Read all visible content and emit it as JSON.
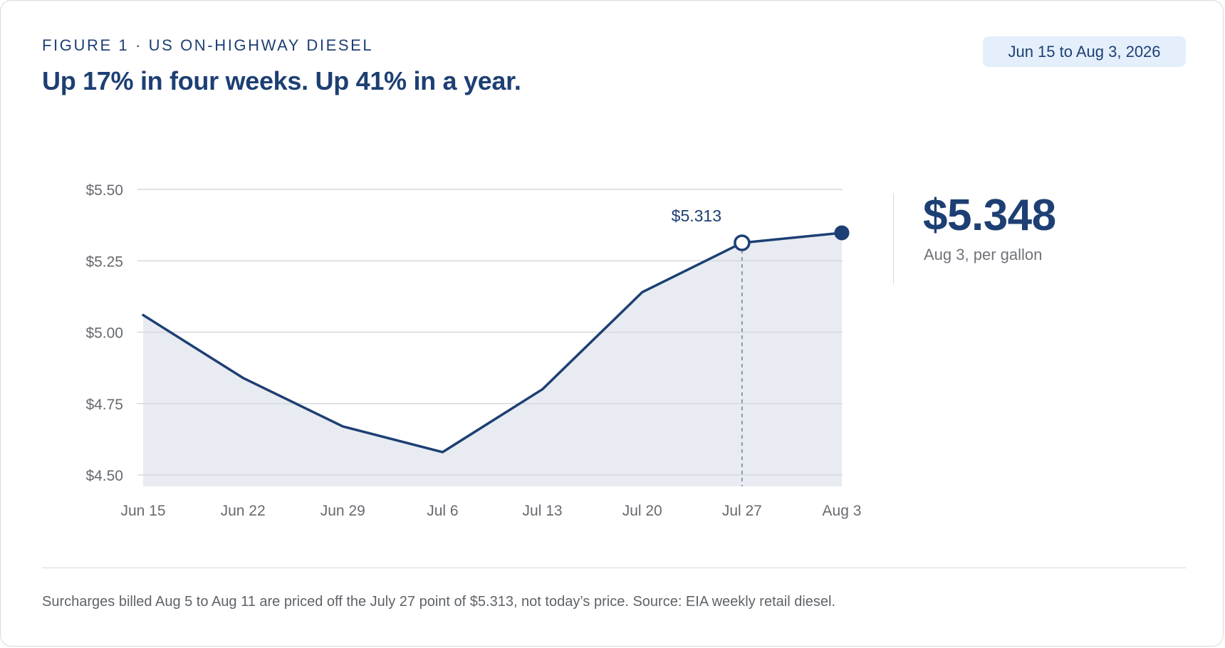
{
  "header": {
    "eyebrow": "FIGURE 1 · US ON-HIGHWAY DIESEL",
    "headline": "Up 17% in four weeks. Up 41% in a year.",
    "date_range": "Jun 15 to Aug 3, 2026"
  },
  "callout": {
    "value": "$5.348",
    "caption": "Aug 3, per gallon"
  },
  "footnote": "Surcharges billed Aug 5 to Aug 11 are priced off the July 27 point of $5.313, not today’s price. Source: EIA weekly retail diesel.",
  "colors": {
    "line": "#1d3f73",
    "area": "#e8ebf1",
    "grid": "#d5d8dd",
    "tick_text": "#666a6f"
  },
  "chart_data": {
    "type": "area",
    "title": "",
    "xlabel": "",
    "ylabel": "",
    "x": [
      "Jun 15",
      "Jun 22",
      "Jun 29",
      "Jul 6",
      "Jul 13",
      "Jul 20",
      "Jul 27",
      "Aug 3"
    ],
    "series": [
      {
        "values": [
          5.06,
          4.84,
          4.67,
          4.58,
          4.8,
          5.14,
          5.313,
          5.348
        ]
      }
    ],
    "ylim": [
      4.5,
      5.5
    ],
    "yticks": [
      4.5,
      4.75,
      5.0,
      5.25,
      5.5
    ],
    "ytick_labels": [
      "$4.50",
      "$4.75",
      "$5.00",
      "$5.25",
      "$5.50"
    ],
    "grid": true,
    "annotation": {
      "x": "Jul 27",
      "value": 5.313,
      "label": "$5.313"
    },
    "highlight_last_point": true
  }
}
